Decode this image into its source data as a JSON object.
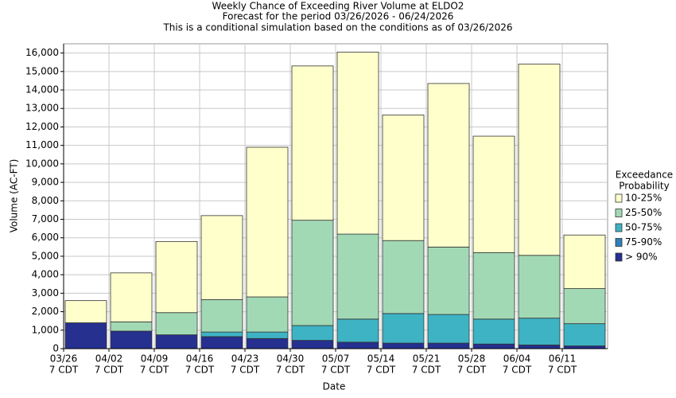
{
  "chart_data": {
    "type": "bar",
    "stacked": true,
    "title": [
      "Weekly Chance of Exceeding River Volume at ELDO2",
      "Forecast for the period 03/26/2026 - 06/24/2026",
      "This is a conditional simulation based on the conditions as of 03/26/2026"
    ],
    "x_label": "Date",
    "y_label": "Volume (AC-FT)",
    "categories": [
      "03/26",
      "04/02",
      "04/09",
      "04/16",
      "04/23",
      "04/30",
      "05/07",
      "05/14",
      "05/21",
      "05/28",
      "06/04",
      "06/11"
    ],
    "category_sublabels": [
      "7 CDT",
      "7 CDT",
      "7 CDT",
      "7 CDT",
      "7 CDT",
      "7 CDT",
      "7 CDT",
      "7 CDT",
      "7 CDT",
      "7 CDT",
      "7 CDT",
      "7 CDT"
    ],
    "legend_title": [
      "Exceedance",
      "Probability"
    ],
    "series": [
      {
        "name": "> 90%",
        "color": "#25308f",
        "values": [
          1400,
          950,
          750,
          650,
          550,
          450,
          350,
          300,
          300,
          250,
          200,
          150
        ]
      },
      {
        "name": "75-90%",
        "color": "#2f7fb8",
        "values": [
          0,
          0,
          0,
          0,
          0,
          0,
          0,
          0,
          0,
          0,
          0,
          0
        ]
      },
      {
        "name": "50-75%",
        "color": "#3eb3c4",
        "values": [
          0,
          0,
          0,
          250,
          350,
          800,
          1250,
          1600,
          1550,
          1350,
          1450,
          1200
        ]
      },
      {
        "name": "25-50%",
        "color": "#a2d9b5",
        "values": [
          0,
          500,
          1200,
          1750,
          1900,
          5700,
          4600,
          3950,
          3650,
          3600,
          3400,
          1900
        ]
      },
      {
        "name": "10-25%",
        "color": "#ffffcc",
        "values": [
          1200,
          2650,
          3850,
          4550,
          8100,
          8350,
          9850,
          6800,
          8850,
          6300,
          10350,
          2900
        ]
      }
    ],
    "ylim": [
      0,
      16500
    ],
    "yticks": [
      0,
      {
        "value": 1000,
        "label": "1,000"
      },
      {
        "value": 2000,
        "label": "2,000"
      },
      {
        "value": 3000,
        "label": "3,000"
      },
      {
        "value": 4000,
        "label": "4,000"
      },
      {
        "value": 5000,
        "label": "5,000"
      },
      {
        "value": 6000,
        "label": "6,000"
      },
      {
        "value": 7000,
        "label": "7,000"
      },
      {
        "value": 8000,
        "label": "8,000"
      },
      {
        "value": 9000,
        "label": "9,000"
      },
      {
        "value": 10000,
        "label": "10,000"
      },
      {
        "value": 11000,
        "label": "11,000"
      },
      {
        "value": 12000,
        "label": "12,000"
      },
      {
        "value": 13000,
        "label": "13,000"
      },
      {
        "value": 14000,
        "label": "14,000"
      },
      {
        "value": 15000,
        "label": "15,000"
      },
      {
        "value": 16000,
        "label": "16,000"
      }
    ],
    "grid": true
  }
}
